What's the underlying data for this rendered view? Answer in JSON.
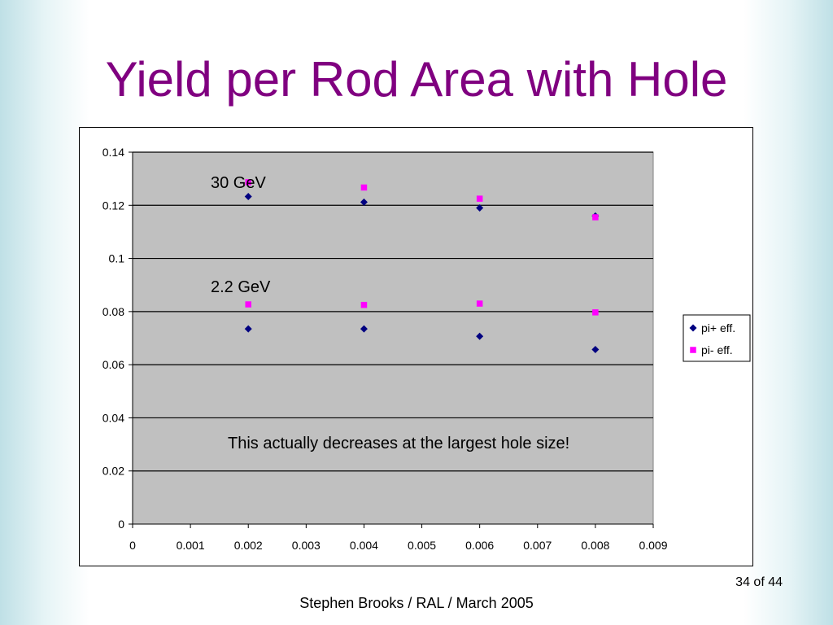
{
  "slide": {
    "title": "Yield per Rod Area with Hole",
    "page_number": "34 of 44",
    "footer": "Stephen Brooks / RAL / March 2005"
  },
  "chart_data": {
    "type": "scatter",
    "xlim": [
      0,
      0.009
    ],
    "ylim": [
      0,
      0.14
    ],
    "x_ticks": [
      "0",
      "0.001",
      "0.002",
      "0.003",
      "0.004",
      "0.005",
      "0.006",
      "0.007",
      "0.008",
      "0.009"
    ],
    "y_ticks": [
      "0",
      "0.02",
      "0.04",
      "0.06",
      "0.08",
      "0.1",
      "0.12",
      "0.14"
    ],
    "grid": "horizontal",
    "plot_background": "#c0c0c0",
    "legend_position": "right",
    "series": [
      {
        "name": "pi+ eff.",
        "marker": "diamond",
        "color": "#000080",
        "points": [
          {
            "x": 0.002,
            "y": 0.1233
          },
          {
            "x": 0.004,
            "y": 0.1212
          },
          {
            "x": 0.006,
            "y": 0.119
          },
          {
            "x": 0.008,
            "y": 0.116
          },
          {
            "x": 0.002,
            "y": 0.0735
          },
          {
            "x": 0.004,
            "y": 0.0735
          },
          {
            "x": 0.006,
            "y": 0.0707
          },
          {
            "x": 0.008,
            "y": 0.0657
          }
        ]
      },
      {
        "name": "pi- eff.",
        "marker": "square",
        "color": "#ff00ff",
        "points": [
          {
            "x": 0.002,
            "y": 0.1287
          },
          {
            "x": 0.004,
            "y": 0.1267
          },
          {
            "x": 0.006,
            "y": 0.1225
          },
          {
            "x": 0.008,
            "y": 0.1155
          },
          {
            "x": 0.002,
            "y": 0.0827
          },
          {
            "x": 0.004,
            "y": 0.0825
          },
          {
            "x": 0.006,
            "y": 0.083
          },
          {
            "x": 0.008,
            "y": 0.0797
          }
        ]
      }
    ],
    "annotations": [
      {
        "text": "30 GeV",
        "x": 0.00135,
        "y": 0.1265
      },
      {
        "text": "2.2 GeV",
        "x": 0.00135,
        "y": 0.0873
      },
      {
        "text": "This actually decreases at the largest hole size!",
        "x": 0.0046,
        "y": 0.0285
      }
    ]
  }
}
